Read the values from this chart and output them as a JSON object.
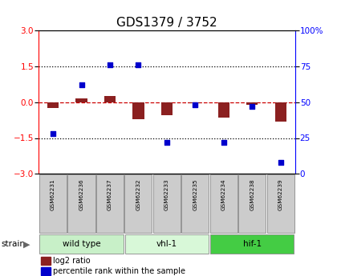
{
  "title": "GDS1379 / 3752",
  "samples": [
    "GSM62231",
    "GSM62236",
    "GSM62237",
    "GSM62232",
    "GSM62233",
    "GSM62235",
    "GSM62234",
    "GSM62238",
    "GSM62239"
  ],
  "log2_ratio": [
    -0.25,
    0.15,
    0.25,
    -0.7,
    -0.55,
    -0.05,
    -0.65,
    -0.12,
    -0.8
  ],
  "percentile_rank": [
    28,
    62,
    76,
    76,
    22,
    48,
    22,
    47,
    8
  ],
  "groups": [
    {
      "label": "wild type",
      "start": 0,
      "end": 3,
      "color": "#c8f0c8"
    },
    {
      "label": "vhl-1",
      "start": 3,
      "end": 6,
      "color": "#d8f8d8"
    },
    {
      "label": "hif-1",
      "start": 6,
      "end": 9,
      "color": "#44cc44"
    }
  ],
  "ylim_left": [
    -3,
    3
  ],
  "ylim_right": [
    0,
    100
  ],
  "yticks_left": [
    -3,
    -1.5,
    0,
    1.5,
    3
  ],
  "yticks_right": [
    0,
    25,
    50,
    75,
    100
  ],
  "hline_y": [
    1.5,
    -1.5
  ],
  "bar_color": "#8b2020",
  "dot_color": "#0000cc",
  "zero_line_color": "#cc0000",
  "background_plot": "#ffffff",
  "sample_box_color": "#cccccc",
  "title_fontsize": 11
}
